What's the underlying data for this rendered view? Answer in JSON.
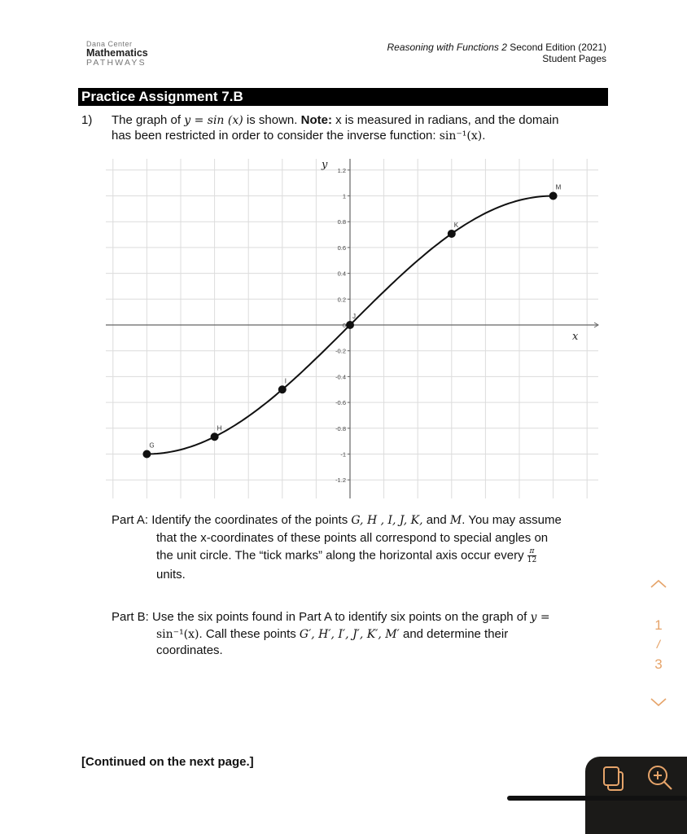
{
  "header": {
    "logo_line1": "Dana Center",
    "logo_line2": "Mathematics",
    "logo_line3": "PATHWAYS",
    "book_title_italic": "Reasoning with Functions 2",
    "book_edition": " Second Edition (2021)",
    "book_subtitle": "Student Pages"
  },
  "assignment": {
    "title": "Practice Assignment 7.B",
    "q_number": "1)",
    "q_text_1": "The graph of ",
    "q_math_1": "y = sin (x)",
    "q_text_2": " is shown. ",
    "q_note_label": "Note:",
    "q_text_3": " x is measured in radians, and the domain",
    "q_text_4": "has been restricted in order to consider the inverse function: ",
    "q_math_2": "sin⁻¹(x)",
    "q_text_5": ".",
    "part_a_label": "Part A:",
    "part_a_1": "Identify the coordinates of the points ",
    "part_a_points": "G, H , I, J, K,",
    "part_a_2": " and ",
    "part_a_m": "M",
    "part_a_3": ". You may assume",
    "part_a_4": "that the x-coordinates of these points all correspond to special angles on",
    "part_a_5": "the unit circle. The “tick marks” along the horizontal axis occur every ",
    "part_a_frac_num": "π",
    "part_a_frac_den": "12",
    "part_a_6": "units.",
    "part_b_label": "Part B:",
    "part_b_1": "Use the six points found in Part A to identify six points on the graph of ",
    "part_b_math_1": "y =",
    "part_b_math_2": "sin⁻¹(x)",
    "part_b_2": ". Call these points ",
    "part_b_points": "G′, H′, I′, J′, K′, M′",
    "part_b_3": " and determine their",
    "part_b_4": "coordinates.",
    "continued": "[Continued on the next page.]"
  },
  "chart_data": {
    "type": "line",
    "function": "y = sin(x)",
    "xlabel": "x",
    "ylabel": "y",
    "x_domain": [
      "-π/2",
      "π/2"
    ],
    "x_tick_spacing": "π/12",
    "xlim_ticks": [
      -7,
      7
    ],
    "ylim": [
      -1.3,
      1.3
    ],
    "y_ticks": [
      "-1.2",
      "-1",
      "-0.8",
      "-0.6",
      "-0.4",
      "-0.2",
      "0",
      "0.2",
      "0.4",
      "0.6",
      "0.8",
      "1",
      "1.2"
    ],
    "grid": true,
    "points": [
      {
        "label": "G",
        "x_ticks": -6,
        "y": -1
      },
      {
        "label": "H",
        "x_ticks": -4,
        "y": -0.866
      },
      {
        "label": "I",
        "x_ticks": -2,
        "y": -0.5
      },
      {
        "label": "J",
        "x_ticks": 0,
        "y": 0
      },
      {
        "label": "K",
        "x_ticks": 3,
        "y": 0.707
      },
      {
        "label": "M",
        "x_ticks": 6,
        "y": 1
      }
    ]
  },
  "viewer": {
    "page_current": "1",
    "page_sep": "/",
    "page_total": "3",
    "accent": "#e6a46a"
  }
}
